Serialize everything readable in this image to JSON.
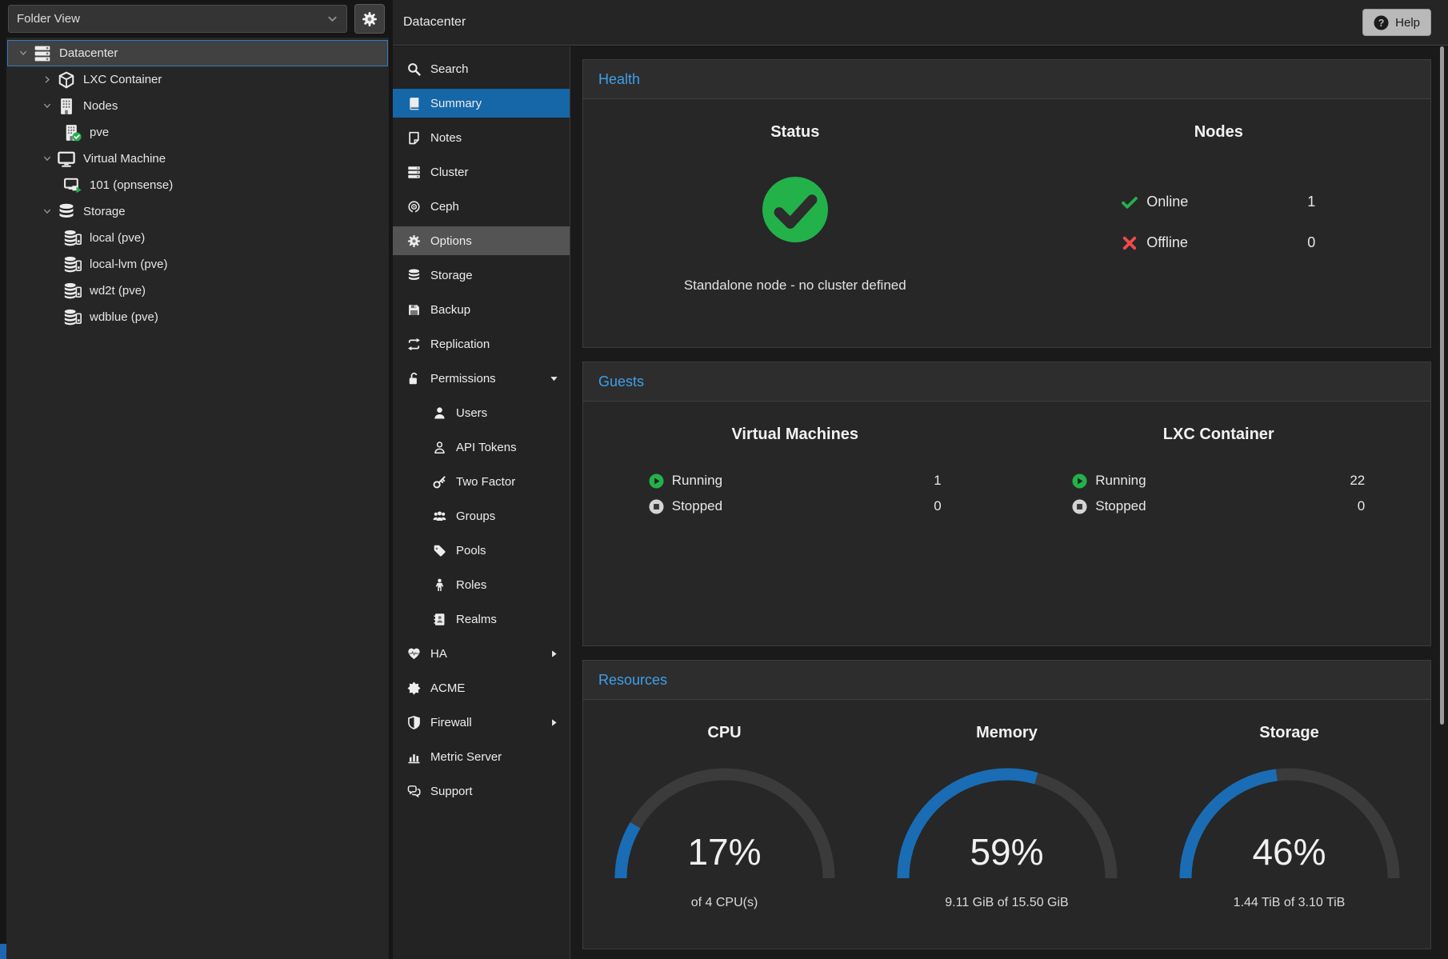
{
  "colors": {
    "selection_blue": "#1567a8",
    "link_blue": "#3f9fe8",
    "green": "#23b14a",
    "red": "#ee4b4e",
    "gauge_blue": "#1a6db4",
    "gauge_track": "#3b3b3b"
  },
  "left_panel": {
    "view_selector": {
      "value": "Folder View"
    },
    "tree": [
      {
        "label": "Datacenter",
        "icon": "server",
        "level": 0,
        "expand": "down",
        "selected": true
      },
      {
        "label": "LXC Container",
        "icon": "cube",
        "level": 1,
        "expand": "right"
      },
      {
        "label": "Nodes",
        "icon": "building",
        "level": 1,
        "expand": "down"
      },
      {
        "label": "pve",
        "icon": "building-check",
        "level": 2
      },
      {
        "label": "Virtual Machine",
        "icon": "desktop",
        "level": 1,
        "expand": "down"
      },
      {
        "label": "101 (opnsense)",
        "icon": "desktop-play",
        "level": 2
      },
      {
        "label": "Storage",
        "icon": "database",
        "level": 1,
        "expand": "down"
      },
      {
        "label": "local (pve)",
        "icon": "database-drive",
        "level": 2
      },
      {
        "label": "local-lvm (pve)",
        "icon": "database-drive",
        "level": 2
      },
      {
        "label": "wd2t (pve)",
        "icon": "database-drive",
        "level": 2
      },
      {
        "label": "wdblue (pve)",
        "icon": "database-drive",
        "level": 2
      }
    ]
  },
  "header": {
    "title": "Datacenter",
    "help_label": "Help"
  },
  "menu": {
    "items": [
      {
        "label": "Search",
        "icon": "search"
      },
      {
        "label": "Summary",
        "icon": "book",
        "selected": true
      },
      {
        "label": "Notes",
        "icon": "note"
      },
      {
        "label": "Cluster",
        "icon": "cluster"
      },
      {
        "label": "Ceph",
        "icon": "ceph"
      },
      {
        "label": "Options",
        "icon": "gear",
        "hovered": true
      },
      {
        "label": "Storage",
        "icon": "database"
      },
      {
        "label": "Backup",
        "icon": "floppy"
      },
      {
        "label": "Replication",
        "icon": "replication"
      },
      {
        "label": "Permissions",
        "icon": "unlock",
        "expand": "down"
      },
      {
        "label": "Users",
        "icon": "user",
        "child": true
      },
      {
        "label": "API Tokens",
        "icon": "user-outline",
        "child": true
      },
      {
        "label": "Two Factor",
        "icon": "key",
        "child": true
      },
      {
        "label": "Groups",
        "icon": "users",
        "child": true
      },
      {
        "label": "Pools",
        "icon": "tag",
        "child": true
      },
      {
        "label": "Roles",
        "icon": "person",
        "child": true
      },
      {
        "label": "Realms",
        "icon": "address-book",
        "child": true
      },
      {
        "label": "HA",
        "icon": "heartbeat",
        "expand": "right"
      },
      {
        "label": "ACME",
        "icon": "burst"
      },
      {
        "label": "Firewall",
        "icon": "shield",
        "expand": "right"
      },
      {
        "label": "Metric Server",
        "icon": "bar-chart"
      },
      {
        "label": "Support",
        "icon": "comments"
      }
    ]
  },
  "health": {
    "title": "Health",
    "status": {
      "title": "Status",
      "ok_icon": "check-circle",
      "message": "Standalone node - no cluster defined"
    },
    "nodes": {
      "title": "Nodes",
      "rows": [
        {
          "icon": "check",
          "label": "Online",
          "value": "1"
        },
        {
          "icon": "cross",
          "label": "Offline",
          "value": "0"
        }
      ]
    }
  },
  "guests": {
    "title": "Guests",
    "columns": [
      {
        "title": "Virtual Machines",
        "rows": [
          {
            "icon": "play",
            "label": "Running",
            "value": "1"
          },
          {
            "icon": "stop",
            "label": "Stopped",
            "value": "0"
          }
        ]
      },
      {
        "title": "LXC Container",
        "rows": [
          {
            "icon": "play",
            "label": "Running",
            "value": "22"
          },
          {
            "icon": "stop",
            "label": "Stopped",
            "value": "0"
          }
        ]
      }
    ]
  },
  "resources": {
    "title": "Resources"
  },
  "chart_data": [
    {
      "type": "gauge",
      "title": "CPU",
      "percent": 17,
      "caption": "of 4 CPU(s)",
      "range": [
        0,
        100
      ],
      "shape": "semicircle"
    },
    {
      "type": "gauge",
      "title": "Memory",
      "percent": 59,
      "caption": "9.11 GiB of 15.50 GiB",
      "range": [
        0,
        100
      ],
      "shape": "semicircle"
    },
    {
      "type": "gauge",
      "title": "Storage",
      "percent": 46,
      "caption": "1.44 TiB of 3.10 TiB",
      "range": [
        0,
        100
      ],
      "shape": "semicircle"
    }
  ]
}
